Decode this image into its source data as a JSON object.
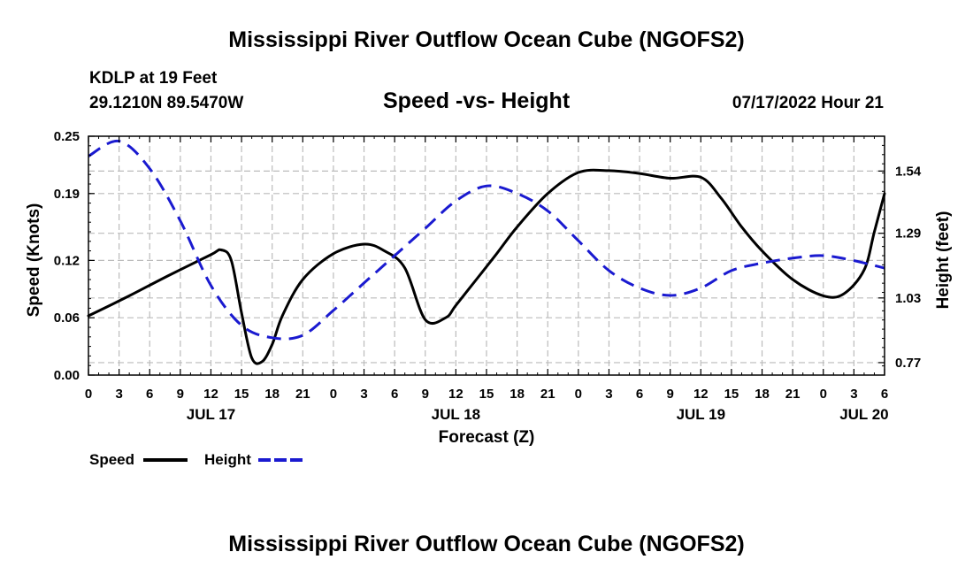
{
  "header": {
    "title": "Mississippi River Outflow Ocean Cube (NGOFS2)",
    "station": "KDLP at 19 Feet",
    "coords": "29.1210N  89.5470W",
    "subtitle": "Speed -vs- Height",
    "datetime": "07/17/2022 Hour 21"
  },
  "footer": {
    "title": "Mississippi River Outflow Ocean Cube (NGOFS2)"
  },
  "legend": {
    "speed_label": "Speed",
    "height_label": "Height"
  },
  "colors": {
    "speed": "#000000",
    "height": "#1a1ad0",
    "grid": "#bbbbbb"
  },
  "chart_data": {
    "type": "line",
    "title": "Speed -vs- Height",
    "xlabel": "Forecast (Z)",
    "ylabel": "Speed (Knots)",
    "y2label": "Height (feet)",
    "xlim": [
      0,
      78
    ],
    "ylim": [
      0,
      0.25
    ],
    "y2lim": [
      0.72,
      1.68
    ],
    "x_ticks": [
      0,
      3,
      6,
      9,
      12,
      15,
      18,
      21,
      24,
      27,
      30,
      33,
      36,
      39,
      42,
      45,
      48,
      51,
      54,
      57,
      60,
      63,
      66,
      69,
      72,
      75,
      78
    ],
    "x_tick_labels": [
      "0",
      "3",
      "6",
      "9",
      "12",
      "15",
      "18",
      "21",
      "0",
      "3",
      "6",
      "9",
      "12",
      "15",
      "18",
      "21",
      "0",
      "3",
      "6",
      "9",
      "12",
      "15",
      "18",
      "21",
      "0",
      "3",
      "6"
    ],
    "y_ticks": [
      0,
      0.06,
      0.12,
      0.19,
      0.25
    ],
    "y_tick_labels": [
      "0.00",
      "0.06",
      "0.12",
      "0.19",
      "0.25"
    ],
    "y2_ticks": [
      0.77,
      1.03,
      1.29,
      1.54
    ],
    "y2_tick_labels": [
      "0.77",
      "1.03",
      "1.29",
      "1.54"
    ],
    "day_labels": [
      {
        "x": 12,
        "label": "JUL 17"
      },
      {
        "x": 36,
        "label": "JUL 18"
      },
      {
        "x": 60,
        "label": "JUL 19"
      },
      {
        "x": 76,
        "label": "JUL 20"
      }
    ],
    "grid": true,
    "series": [
      {
        "name": "Speed",
        "axis": "left",
        "style": "solid",
        "x": [
          0,
          4,
          8,
          12,
          13,
          14,
          15,
          16,
          17,
          18,
          19,
          21,
          24,
          27,
          29,
          31,
          33,
          35,
          36,
          38,
          40,
          42,
          45,
          48,
          51,
          54,
          57,
          60,
          62,
          64,
          66,
          69,
          72,
          74,
          76,
          77,
          78
        ],
        "y": [
          0.062,
          0.083,
          0.105,
          0.126,
          0.131,
          0.12,
          0.065,
          0.018,
          0.014,
          0.032,
          0.062,
          0.1,
          0.127,
          0.137,
          0.13,
          0.112,
          0.058,
          0.06,
          0.073,
          0.1,
          0.127,
          0.155,
          0.19,
          0.212,
          0.214,
          0.211,
          0.206,
          0.207,
          0.185,
          0.155,
          0.13,
          0.1,
          0.083,
          0.085,
          0.11,
          0.15,
          0.19
        ]
      },
      {
        "name": "Height",
        "axis": "right",
        "style": "dashed",
        "x": [
          0,
          3,
          6,
          9,
          12,
          15,
          18,
          21,
          24,
          27,
          30,
          33,
          36,
          39,
          42,
          45,
          48,
          51,
          54,
          57,
          60,
          63,
          66,
          69,
          72,
          75,
          78
        ],
        "y": [
          1.6,
          1.66,
          1.55,
          1.34,
          1.08,
          0.92,
          0.87,
          0.88,
          0.98,
          1.09,
          1.2,
          1.31,
          1.42,
          1.48,
          1.45,
          1.38,
          1.26,
          1.14,
          1.07,
          1.04,
          1.07,
          1.14,
          1.17,
          1.19,
          1.2,
          1.18,
          1.15
        ]
      }
    ]
  }
}
